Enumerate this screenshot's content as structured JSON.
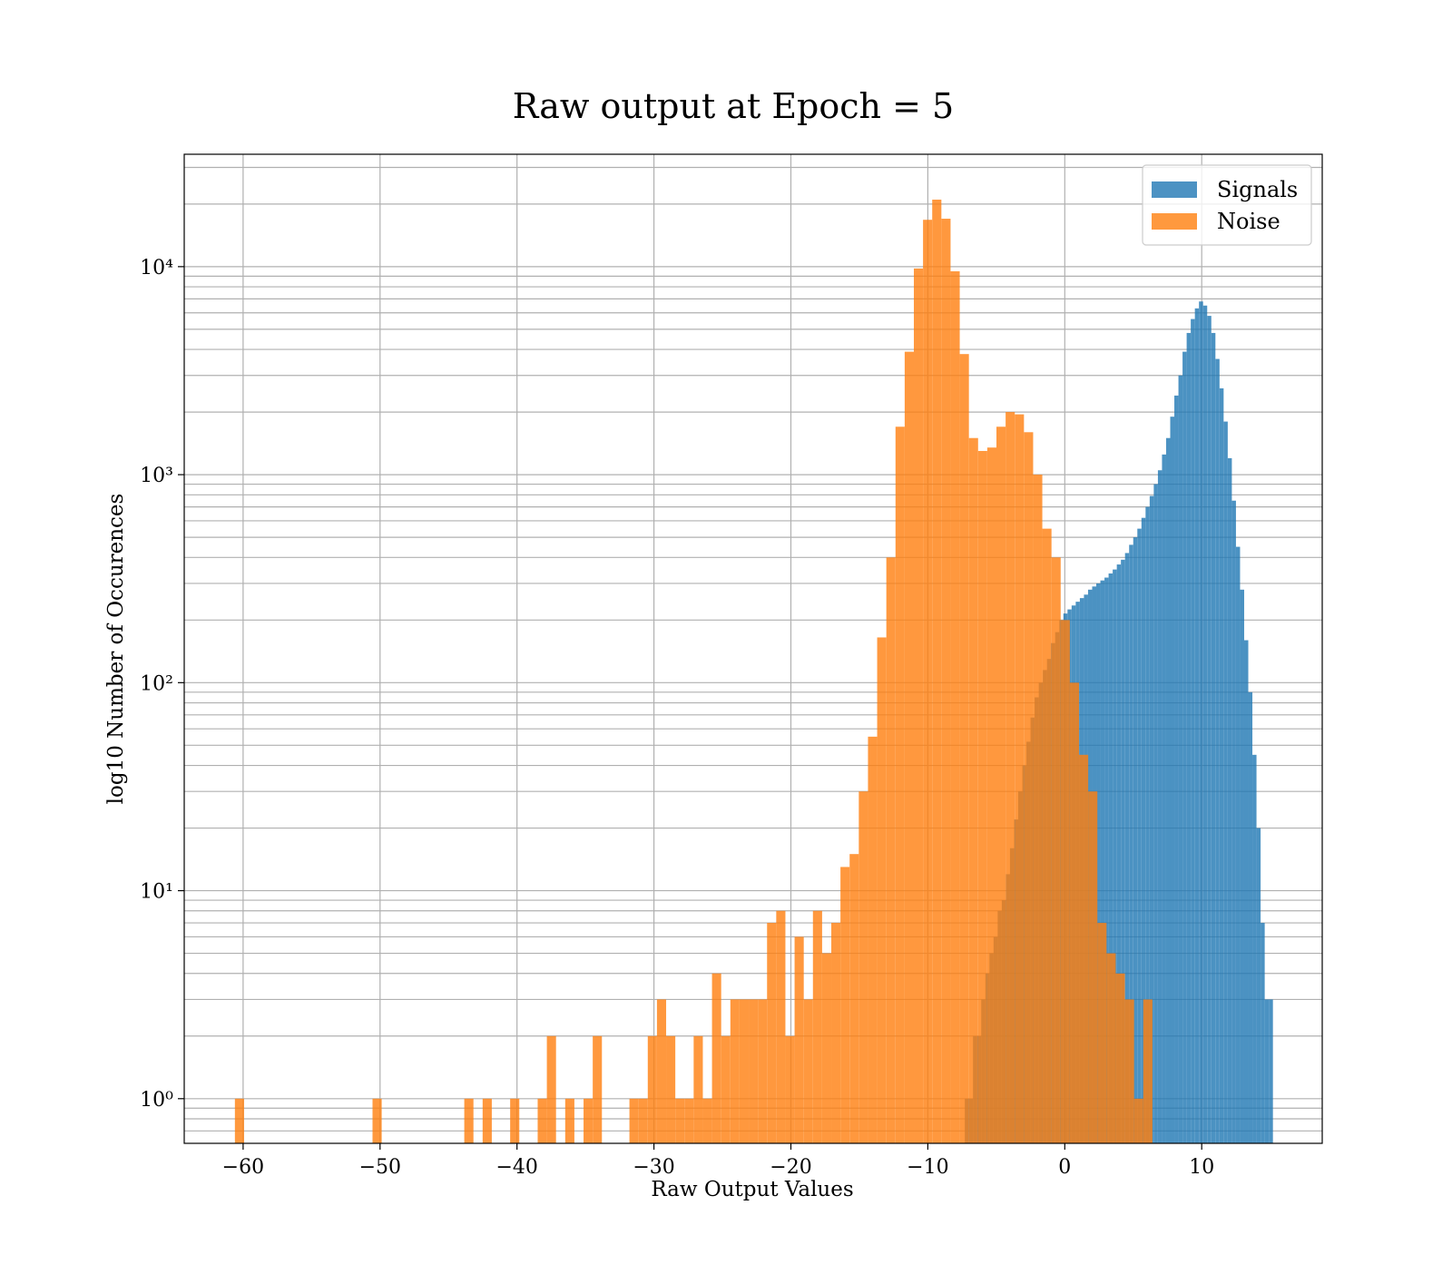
{
  "chart_data": {
    "type": "histogram",
    "title": "Raw output at Epoch = 5",
    "xlabel": "Raw Output Values",
    "ylabel": "log10 Number of Occurences",
    "log_y": true,
    "grid": true,
    "legend": "upper right",
    "xlim": [
      -64.3,
      18.8
    ],
    "ylim": [
      0.61,
      34700
    ],
    "xticks": [
      {
        "value": -60,
        "label": "−60"
      },
      {
        "value": -50,
        "label": "−50"
      },
      {
        "value": -40,
        "label": "−40"
      },
      {
        "value": -30,
        "label": "−30"
      },
      {
        "value": -20,
        "label": "−20"
      },
      {
        "value": -10,
        "label": "−10"
      },
      0,
      10
    ],
    "yticks": [
      {
        "value": 1,
        "label": "10⁰"
      },
      {
        "value": 10,
        "label": "10¹"
      },
      {
        "value": 100,
        "label": "10²"
      },
      {
        "value": 1000,
        "label": "10³"
      },
      {
        "value": 10000,
        "label": "10⁴"
      }
    ],
    "yticks_minor": [
      0.7,
      0.8,
      0.9,
      2,
      3,
      4,
      5,
      6,
      7,
      8,
      9,
      20,
      30,
      40,
      50,
      60,
      70,
      80,
      90,
      200,
      300,
      400,
      500,
      600,
      700,
      800,
      900,
      2000,
      3000,
      4000,
      5000,
      6000,
      7000,
      8000,
      9000,
      20000,
      30000
    ],
    "series": [
      {
        "name": "Signals",
        "color": "#1f77b4",
        "alpha": 0.8,
        "bins": [
          -7.3,
          -7,
          -6.7,
          -6.4,
          -6.1,
          -5.8,
          -5.5,
          -5.2,
          -4.9,
          -4.6,
          -4.3,
          -4,
          -3.7,
          -3.4,
          -3.1,
          -2.8,
          -2.5,
          -2.2,
          -1.9,
          -1.6,
          -1.3,
          -1,
          -0.7,
          -0.4,
          -0.1,
          0.2,
          0.5,
          0.8,
          1.1,
          1.4,
          1.7,
          2,
          2.3,
          2.6,
          2.9,
          3.2,
          3.5,
          3.8,
          4.1,
          4.4,
          4.7,
          5,
          5.3,
          5.6,
          5.9,
          6.2,
          6.5,
          6.8,
          7.1,
          7.4,
          7.7,
          8,
          8.3,
          8.6,
          8.9,
          9.2,
          9.5,
          9.8,
          10.1,
          10.4,
          10.7,
          11,
          11.3,
          11.6,
          11.9,
          12.2,
          12.5,
          12.8,
          13.1,
          13.4,
          13.7,
          14,
          14.3,
          14.6,
          14.9,
          15.2
        ],
        "values": [
          1,
          1,
          2,
          2,
          3,
          4,
          5,
          6,
          8,
          9,
          12,
          16,
          22,
          30,
          40,
          52,
          68,
          85,
          100,
          115,
          130,
          155,
          175,
          200,
          215,
          225,
          235,
          245,
          255,
          265,
          280,
          290,
          300,
          310,
          320,
          335,
          350,
          370,
          390,
          420,
          460,
          500,
          550,
          620,
          700,
          790,
          900,
          1050,
          1250,
          1500,
          1900,
          2400,
          3000,
          3900,
          4800,
          5600,
          6300,
          6800,
          6500,
          5800,
          4800,
          3600,
          2600,
          1800,
          1200,
          750,
          450,
          280,
          160,
          90,
          45,
          20,
          7,
          3,
          3
        ]
      },
      {
        "name": "Noise",
        "color": "#ff7f0e",
        "alpha": 0.8,
        "bins": [
          -60.6,
          -59.93,
          -59.26,
          -58.59,
          -57.92,
          -57.25,
          -56.58,
          -55.91,
          -55.24,
          -54.57,
          -53.9,
          -53.23,
          -52.56,
          -51.89,
          -51.22,
          -50.55,
          -49.88,
          -49.21,
          -48.54,
          -47.87,
          -47.2,
          -46.53,
          -45.86,
          -45.19,
          -44.52,
          -43.85,
          -43.18,
          -42.51,
          -41.84,
          -41.17,
          -40.5,
          -39.83,
          -39.16,
          -38.49,
          -37.82,
          -37.15,
          -36.48,
          -35.81,
          -35.14,
          -34.47,
          -33.8,
          -33.13,
          -32.46,
          -31.79,
          -31.12,
          -30.45,
          -29.78,
          -29.11,
          -28.44,
          -27.77,
          -27.1,
          -26.43,
          -25.76,
          -25.09,
          -24.42,
          -23.75,
          -23.08,
          -22.41,
          -21.74,
          -21.07,
          -20.4,
          -19.73,
          -19.06,
          -18.39,
          -17.72,
          -17.05,
          -16.38,
          -15.71,
          -15.04,
          -14.37,
          -13.7,
          -13.03,
          -12.36,
          -11.69,
          -11.02,
          -10.35,
          -9.68,
          -9.01,
          -8.34,
          -7.67,
          -7,
          -6.33,
          -5.66,
          -4.99,
          -4.32,
          -3.65,
          -2.98,
          -2.31,
          -1.64,
          -0.97,
          -0.3,
          0.37,
          1.04,
          1.71,
          2.38,
          3.05,
          3.72,
          4.39,
          5.06,
          5.73,
          6.4
        ],
        "values": [
          1,
          0,
          0,
          0,
          0,
          0,
          0,
          0,
          0,
          0,
          0,
          0,
          0,
          0,
          0,
          1,
          0,
          0,
          0,
          0,
          0,
          0,
          0,
          0,
          0,
          1,
          0,
          1,
          0,
          0,
          1,
          0,
          0,
          1,
          2,
          0,
          1,
          0,
          1,
          2,
          0,
          0,
          0,
          1,
          1,
          2,
          3,
          2,
          1,
          1,
          2,
          1,
          4,
          2,
          3,
          3,
          3,
          3,
          7,
          8,
          2,
          6,
          3,
          8,
          5,
          7,
          13,
          15,
          30,
          55,
          165,
          400,
          1700,
          3900,
          9800,
          16800,
          21000,
          17000,
          9500,
          3800,
          1500,
          1300,
          1350,
          1700,
          2000,
          1950,
          1600,
          1000,
          550,
          400,
          200,
          100,
          45,
          30,
          7,
          5,
          4,
          3,
          1,
          3
        ]
      }
    ]
  }
}
